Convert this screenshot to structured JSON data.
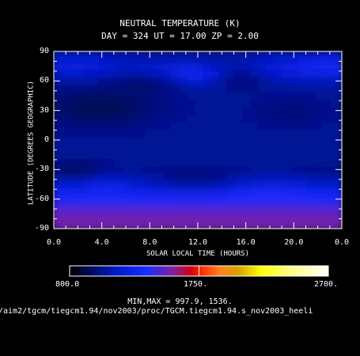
{
  "chart_data": {
    "type": "heatmap",
    "title": "NEUTRAL TEMPERATURE (K)",
    "subtitle": "DAY = 324   UT = 17.00   ZP =    2.00",
    "xlabel": "SOLAR LOCAL TIME (HOURS)",
    "ylabel": "LATITUDE (DEGREES GEOGRAPHIC)",
    "xlim": [
      0,
      24
    ],
    "ylim": [
      -90,
      90
    ],
    "x_tick_labels": [
      "0.0",
      "4.0",
      "8.0",
      "12.0",
      "16.0",
      "20.0",
      "0.0"
    ],
    "y_tick_labels": [
      "90",
      "60",
      "30",
      "0",
      "-30",
      "-60",
      "-90"
    ],
    "colorbar": {
      "range": [
        800,
        2700
      ],
      "tick_labels": [
        "800.0",
        "1750.",
        "2700."
      ]
    },
    "minmax_text": "MIN,MAX =       997.9,      1536.",
    "field_description_points": [
      {
        "lt": 2,
        "lat": 75,
        "value": 1250
      },
      {
        "lt": 8,
        "lat": 55,
        "value": 1150
      },
      {
        "lt": 12,
        "lat": 65,
        "value": 1420
      },
      {
        "lt": 20,
        "lat": 70,
        "value": 1300
      },
      {
        "lt": 4,
        "lat": 25,
        "value": 1000
      },
      {
        "lt": 12,
        "lat": 0,
        "value": 1080
      },
      {
        "lt": 18,
        "lat": 20,
        "value": 1030
      },
      {
        "lt": 4,
        "lat": -50,
        "value": 1480
      },
      {
        "lt": 12,
        "lat": -80,
        "value": 1536
      },
      {
        "lt": 20,
        "lat": -70,
        "value": 1500
      }
    ]
  },
  "footer": {
    "file_path": "/aim2/tgcm/tiegcm1.94/nov2003/proc/TGCM.tiegcm1.94.s_nov2003_heeli"
  }
}
